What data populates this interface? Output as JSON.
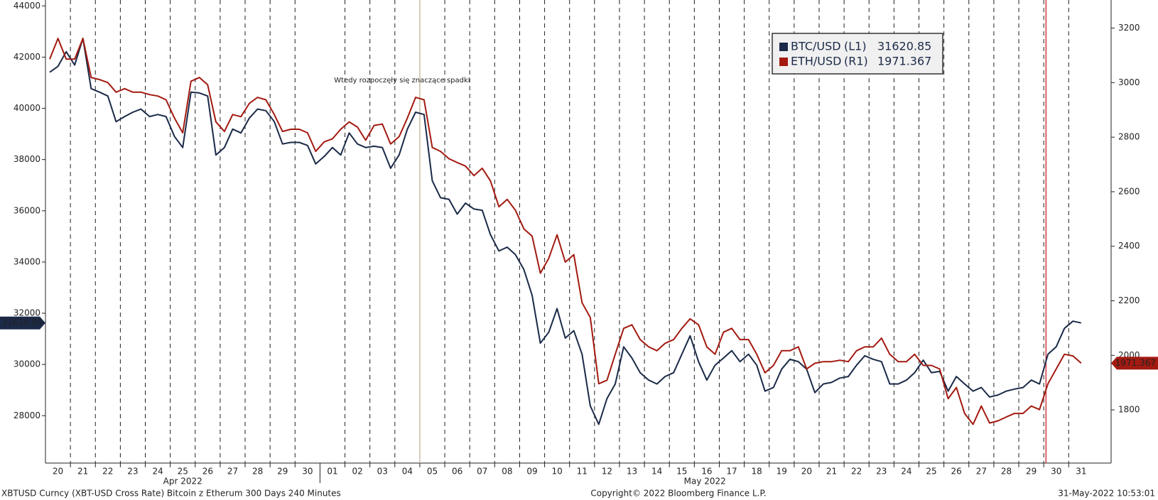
{
  "chart_data": {
    "type": "line",
    "x": [
      0.17,
      0.5,
      0.83,
      1.17,
      1.5,
      1.83,
      2.17,
      2.5,
      2.83,
      3.17,
      3.5,
      3.83,
      4.17,
      4.5,
      4.83,
      5.17,
      5.5,
      5.83,
      6.17,
      6.5,
      6.83,
      7.17,
      7.5,
      7.83,
      8.17,
      8.5,
      8.83,
      9.17,
      9.5,
      9.83,
      10.17,
      10.5,
      10.83,
      11.17,
      11.5,
      11.83,
      12.17,
      12.5,
      12.83,
      13.17,
      13.5,
      13.83,
      14.17,
      14.5,
      14.83,
      15.17,
      15.5,
      15.83,
      16.17,
      16.5,
      16.83,
      17.17,
      17.5,
      17.83,
      18.17,
      18.5,
      18.83,
      19.17,
      19.5,
      19.83,
      20.17,
      20.5,
      20.83,
      21.17,
      21.5,
      21.83,
      22.17,
      22.5,
      22.83,
      23.17,
      23.5,
      23.83,
      24.17,
      24.5,
      24.83,
      25.17,
      25.5,
      25.83,
      26.17,
      26.5,
      26.83,
      27.17,
      27.5,
      27.83,
      28.17,
      28.5,
      28.83,
      29.17,
      29.5,
      29.83,
      30.17,
      30.5,
      30.83,
      31.17,
      31.5,
      31.83,
      32.17,
      32.5,
      32.83,
      33.17,
      33.5,
      33.83,
      34.17,
      34.5,
      34.83,
      35.17,
      35.5,
      35.83,
      36.17,
      36.5,
      36.83,
      37.17,
      37.5,
      37.83,
      38.17,
      38.5,
      38.83,
      39.17,
      39.5,
      39.83,
      40.17,
      40.5,
      40.83,
      41.17,
      41.5
    ],
    "xlim": [
      0,
      42.7
    ],
    "xticks": [
      {
        "value": 0,
        "label": "20"
      },
      {
        "value": 1,
        "label": "21"
      },
      {
        "value": 2,
        "label": "22"
      },
      {
        "value": 3,
        "label": "23"
      },
      {
        "value": 4,
        "label": "24"
      },
      {
        "value": 5,
        "label": "25"
      },
      {
        "value": 6,
        "label": "26"
      },
      {
        "value": 7,
        "label": "27"
      },
      {
        "value": 8,
        "label": "28"
      },
      {
        "value": 9,
        "label": "29"
      },
      {
        "value": 10,
        "label": "30"
      },
      {
        "value": 11,
        "label": "01"
      },
      {
        "value": 12,
        "label": "02"
      },
      {
        "value": 13,
        "label": "03"
      },
      {
        "value": 14,
        "label": "04"
      },
      {
        "value": 15,
        "label": "05"
      },
      {
        "value": 16,
        "label": "06"
      },
      {
        "value": 17,
        "label": "07"
      },
      {
        "value": 18,
        "label": "08"
      },
      {
        "value": 19,
        "label": "09"
      },
      {
        "value": 20,
        "label": "10"
      },
      {
        "value": 21,
        "label": "11"
      },
      {
        "value": 22,
        "label": "12"
      },
      {
        "value": 23,
        "label": "13"
      },
      {
        "value": 24,
        "label": "14"
      },
      {
        "value": 25,
        "label": "15"
      },
      {
        "value": 26,
        "label": "16"
      },
      {
        "value": 27,
        "label": "17"
      },
      {
        "value": 28,
        "label": "18"
      },
      {
        "value": 29,
        "label": "19"
      },
      {
        "value": 30,
        "label": "20"
      },
      {
        "value": 31,
        "label": "21"
      },
      {
        "value": 32,
        "label": "22"
      },
      {
        "value": 33,
        "label": "23"
      },
      {
        "value": 34,
        "label": "24"
      },
      {
        "value": 35,
        "label": "25"
      },
      {
        "value": 36,
        "label": "26"
      },
      {
        "value": 37,
        "label": "27"
      },
      {
        "value": 38,
        "label": "28"
      },
      {
        "value": 39,
        "label": "29"
      },
      {
        "value": 40,
        "label": "30"
      },
      {
        "value": 41,
        "label": "31"
      }
    ],
    "months": [
      "Apr 2022",
      "May 2022"
    ],
    "ylim": [
      26150,
      44230
    ],
    "yticks": [
      28000,
      30000,
      32000,
      34000,
      36000,
      38000,
      40000,
      42000,
      44000
    ],
    "y2lim": [
      1605,
      3303
    ],
    "y2ticks": [
      1800,
      2000,
      2200,
      2400,
      2600,
      2800,
      3000,
      3200
    ],
    "series": [
      {
        "name": "BTC/USD",
        "legend_axis": "(L1)",
        "color": "#1b2a48",
        "axis": "y",
        "values": [
          41410,
          41640,
          42210,
          41690,
          42730,
          40770,
          40630,
          40480,
          39480,
          39680,
          39850,
          39970,
          39680,
          39760,
          39680,
          38900,
          38470,
          40630,
          40600,
          40480,
          38180,
          38470,
          39190,
          39040,
          39620,
          39970,
          39910,
          39480,
          38610,
          38670,
          38670,
          38550,
          37830,
          38120,
          38470,
          38180,
          39040,
          38610,
          38470,
          38520,
          38470,
          37660,
          38180,
          39190,
          39850,
          39760,
          37170,
          36510,
          36450,
          35870,
          36300,
          36070,
          36020,
          35070,
          34430,
          34580,
          34290,
          33710,
          32700,
          30830,
          31260,
          32180,
          31030,
          31320,
          30400,
          28380,
          27660,
          28670,
          29240,
          30690,
          30250,
          29680,
          29390,
          29240,
          29530,
          29680,
          30400,
          31120,
          30110,
          29390,
          29970,
          30250,
          30540,
          30110,
          30400,
          29970,
          28960,
          29100,
          29820,
          30200,
          30110,
          29820,
          28900,
          29240,
          29300,
          29470,
          29530,
          29970,
          30340,
          30200,
          30110,
          29240,
          29240,
          29390,
          29680,
          30170,
          29680,
          29730,
          28960,
          29530,
          29240,
          28960,
          29100,
          28730,
          28810,
          28960,
          29040,
          29100,
          29390,
          29240,
          30400,
          30690,
          31410,
          31690,
          31620.85
        ]
      },
      {
        "name": "ETH/USD",
        "legend_axis": "(R1)",
        "color": "#a31a11",
        "axis": "y2",
        "values": [
          3086,
          3162,
          3086,
          3086,
          3162,
          3019,
          3011,
          3000,
          2965,
          2978,
          2965,
          2965,
          2956,
          2951,
          2937,
          2870,
          2816,
          3005,
          3019,
          2992,
          2856,
          2821,
          2883,
          2875,
          2924,
          2946,
          2937,
          2883,
          2821,
          2829,
          2829,
          2816,
          2748,
          2783,
          2794,
          2829,
          2856,
          2837,
          2789,
          2843,
          2848,
          2775,
          2802,
          2870,
          2946,
          2937,
          2762,
          2748,
          2721,
          2707,
          2694,
          2659,
          2686,
          2640,
          2545,
          2572,
          2532,
          2464,
          2437,
          2301,
          2356,
          2442,
          2342,
          2369,
          2193,
          2139,
          1896,
          1909,
          2004,
          2099,
          2112,
          2058,
          2031,
          2017,
          2044,
          2058,
          2099,
          2134,
          2112,
          2031,
          2004,
          2085,
          2099,
          2058,
          2058,
          2004,
          1936,
          1963,
          2017,
          2017,
          2031,
          1950,
          1971,
          1977,
          1977,
          1982,
          1977,
          2017,
          2031,
          2031,
          2063,
          2004,
          1977,
          1977,
          2004,
          1963,
          1963,
          1950,
          1841,
          1882,
          1787,
          1747,
          1814,
          1752,
          1760,
          1774,
          1787,
          1787,
          1814,
          1801,
          1896,
          1950,
          2004,
          1998,
          1971.367
        ]
      }
    ],
    "annotations": [
      {
        "text": "Wtedy rozpoczęły się znaczące spadki",
        "x": 15,
        "color": "#c8101a",
        "line_color": "#c9c0a8"
      }
    ],
    "vlines": [
      {
        "x": 40.09,
        "color": "#c8101a"
      }
    ],
    "footer": {
      "left": "XBTUSD Curncy (XBT-USD Cross Rate) Bitcoin z Etherum 300 Days 240 Minutes",
      "center": "Copyright© 2022 Bloomberg Finance L.P.",
      "right": "31-May-2022 10:53:01"
    }
  }
}
